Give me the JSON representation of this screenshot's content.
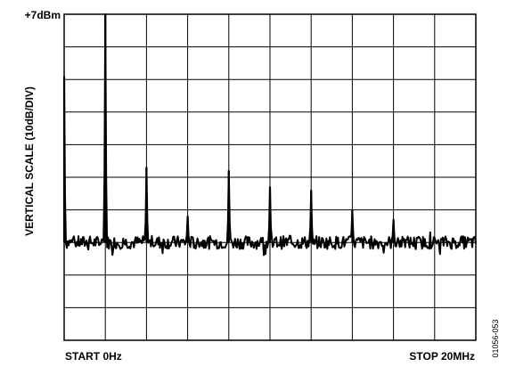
{
  "chart_data": {
    "type": "line",
    "ylabel": "VERTICAL SCALE (10dB/DIV)",
    "top_label": "+7dBm",
    "xstart_label": "START 0Hz",
    "xstop_label": "STOP 20MHz",
    "figure_id": "01056-053",
    "x_unit": "MHz",
    "y_unit": "dBm",
    "xlim": [
      0,
      20
    ],
    "ylim": [
      -93,
      7
    ],
    "grid": true,
    "grid_divisions": {
      "x": 10,
      "y": 10
    },
    "line_color": "#000000",
    "noise_floor": -63,
    "spikes": [
      {
        "x": 0.0,
        "y": -12
      },
      {
        "x": 2.0,
        "y": 7
      },
      {
        "x": 4.0,
        "y": -40
      },
      {
        "x": 6.0,
        "y": -55
      },
      {
        "x": 8.0,
        "y": -41
      },
      {
        "x": 10.0,
        "y": -46
      },
      {
        "x": 12.0,
        "y": -47
      },
      {
        "x": 14.0,
        "y": -53
      },
      {
        "x": 16.0,
        "y": -56
      }
    ]
  }
}
